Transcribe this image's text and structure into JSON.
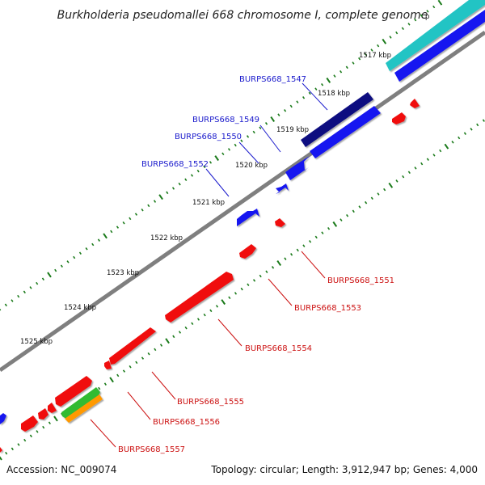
{
  "title": "Burkholderia pseudomallei 668 chromosome I, complete genome",
  "footer": {
    "accession": "Accession: NC_009074",
    "summary": "Topology: circular; Length: 3,912,947 bp; Genes: 4,000"
  },
  "colors": {
    "backbone": "#7f7f7f",
    "ticks": "#1a7a1a",
    "forward_label": "#1a1acc",
    "reverse_label": "#cc1111",
    "gene_blue": "#1515f0",
    "gene_navy": "#0a0a80",
    "gene_red": "#f01010",
    "gene_cyan": "#22c4c4",
    "gene_green": "#33bb33",
    "gene_orange": "#ff9900"
  },
  "tick_labels": [
    "1517 kbp",
    "1518 kbp",
    "1519 kbp",
    "1520 kbp",
    "1521 kbp",
    "1522 kbp",
    "1523 kbp",
    "1524 kbp",
    "1525 kbp"
  ],
  "forward_gene_labels": [
    "BURPS668_1547",
    "BURPS668_1549",
    "BURPS668_1550",
    "BURPS668_1552"
  ],
  "reverse_gene_labels": [
    "BURPS668_1551",
    "BURPS668_1553",
    "BURPS668_1554",
    "BURPS668_1555",
    "BURPS668_1556",
    "BURPS668_1557"
  ]
}
